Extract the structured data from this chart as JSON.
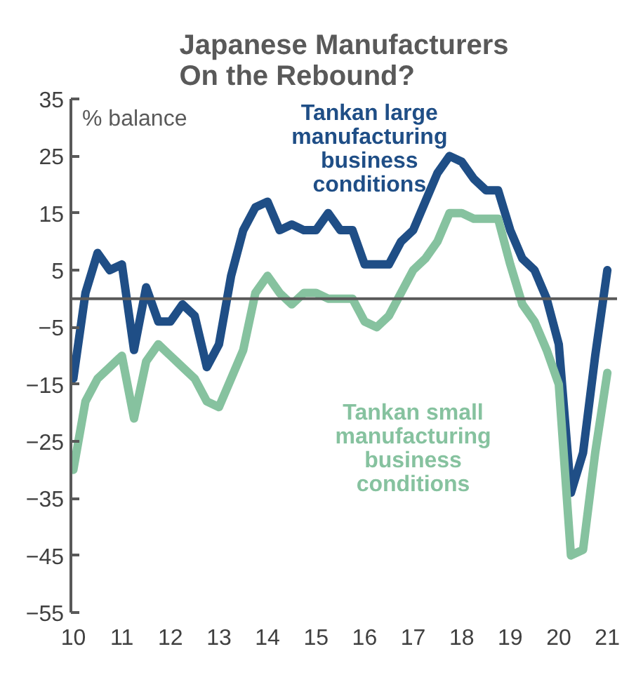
{
  "chart_data": {
    "type": "line",
    "title": "Japanese Manufacturers\nOn the Rebound?",
    "ylabel": "% balance",
    "x": [
      2010.0,
      2010.25,
      2010.5,
      2010.75,
      2011.0,
      2011.25,
      2011.5,
      2011.75,
      2012.0,
      2012.25,
      2012.5,
      2012.75,
      2013.0,
      2013.25,
      2013.5,
      2013.75,
      2014.0,
      2014.25,
      2014.5,
      2014.75,
      2015.0,
      2015.25,
      2015.5,
      2015.75,
      2016.0,
      2016.25,
      2016.5,
      2016.75,
      2017.0,
      2017.25,
      2017.5,
      2017.75,
      2018.0,
      2018.25,
      2018.5,
      2018.75,
      2019.0,
      2019.25,
      2019.5,
      2019.75,
      2020.0,
      2020.25,
      2020.5,
      2020.75,
      2021.0
    ],
    "series": [
      {
        "name": "Tankan large\nmanufacturing\nbusiness\nconditions",
        "color": "#1f4e86",
        "values": [
          -14,
          1,
          8,
          5,
          6,
          -9,
          2,
          -4,
          -4,
          -1,
          -3,
          -12,
          -8,
          4,
          12,
          16,
          17,
          12,
          13,
          12,
          12,
          15,
          12,
          12,
          6,
          6,
          6,
          10,
          12,
          17,
          22,
          25,
          24,
          21,
          19,
          19,
          12,
          7,
          5,
          0,
          -8,
          -34,
          -27,
          -10,
          5
        ]
      },
      {
        "name": "Tankan small\nmanufacturing\nbusiness\nconditions",
        "color": "#86c29f",
        "values": [
          -30,
          -18,
          -14,
          -12,
          -10,
          -21,
          -11,
          -8,
          -10,
          -12,
          -14,
          -18,
          -19,
          -14,
          -9,
          1,
          4,
          1,
          -1,
          1,
          1,
          0,
          0,
          0,
          -4,
          -5,
          -3,
          1,
          5,
          7,
          10,
          15,
          15,
          14,
          14,
          14,
          6,
          -1,
          -4,
          -9,
          -15,
          -45,
          -44,
          -27,
          -13
        ]
      }
    ],
    "xlim": [
      2009.95,
      2021.2
    ],
    "xticks": [
      {
        "value": 2010,
        "label": "10"
      },
      {
        "value": 2011,
        "label": "11"
      },
      {
        "value": 2012,
        "label": "12"
      },
      {
        "value": 2013,
        "label": "13"
      },
      {
        "value": 2014,
        "label": "14"
      },
      {
        "value": 2015,
        "label": "15"
      },
      {
        "value": 2016,
        "label": "16"
      },
      {
        "value": 2017,
        "label": "17"
      },
      {
        "value": 2018,
        "label": "18"
      },
      {
        "value": 2019,
        "label": "19"
      },
      {
        "value": 2020,
        "label": "20"
      },
      {
        "value": 2021,
        "label": "21"
      }
    ],
    "ylim": [
      -55,
      35
    ],
    "yticks": [
      -55,
      -45,
      -35,
      -25,
      -15,
      -5,
      5,
      15,
      25,
      35
    ],
    "ref_lines": [
      {
        "axis": "y",
        "value": 0,
        "color": "#595959"
      }
    ],
    "grid": false
  }
}
